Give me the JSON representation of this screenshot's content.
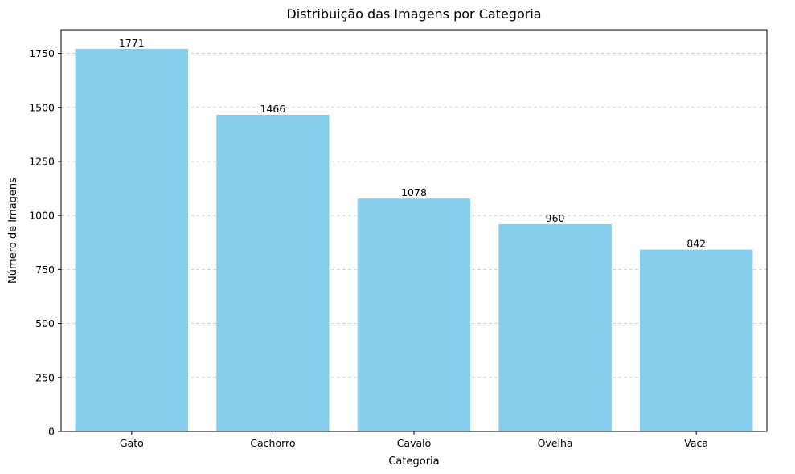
{
  "chart_data": {
    "type": "bar",
    "title": "Distribuição das Imagens por Categoria",
    "xlabel": "Categoria",
    "ylabel": "Número de Imagens",
    "categories": [
      "Gato",
      "Cachorro",
      "Cavalo",
      "Ovelha",
      "Vaca"
    ],
    "values": [
      1771,
      1466,
      1078,
      960,
      842
    ],
    "data_labels": [
      "1771",
      "1466",
      "1078",
      "960",
      "842"
    ],
    "ylim": [
      0,
      1860
    ],
    "yticks": [
      0,
      250,
      500,
      750,
      1000,
      1250,
      1500,
      1750
    ],
    "ytick_labels": [
      "0",
      "250",
      "500",
      "750",
      "1000",
      "1250",
      "1500",
      "1750"
    ],
    "grid": "y-dashed",
    "bar_color": "#87CEEB",
    "grid_color": "#c4c4c4"
  }
}
